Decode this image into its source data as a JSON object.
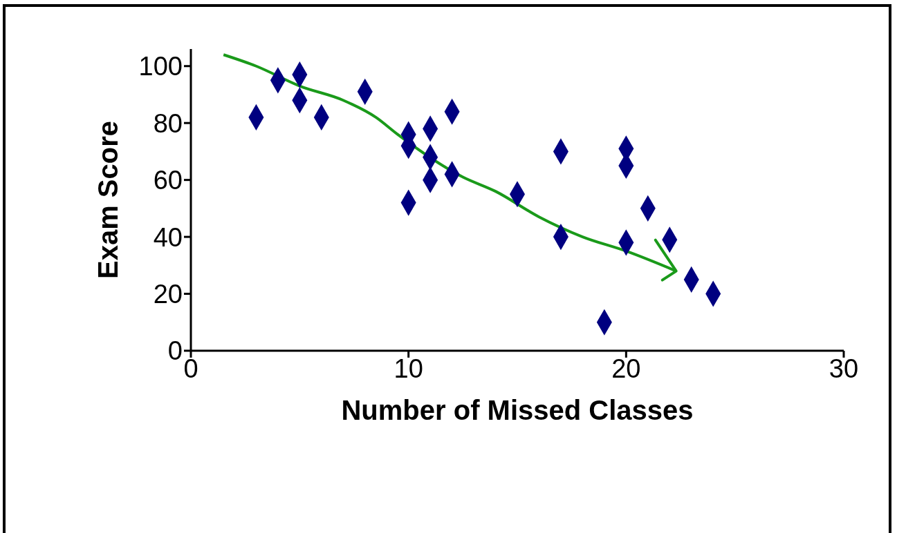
{
  "chart_data": {
    "type": "scatter",
    "xlabel": "Number of Missed Classes",
    "ylabel": "Exam Score",
    "xlim": [
      0,
      30
    ],
    "ylim": [
      0,
      106
    ],
    "xticks": [
      0,
      10,
      20,
      30
    ],
    "yticks": [
      0,
      20,
      40,
      60,
      80,
      100
    ],
    "grid": false,
    "legend": false,
    "series": [
      {
        "color": "#000080",
        "marker": "diamond",
        "x": [
          3,
          4,
          5,
          5,
          6,
          8,
          10,
          10,
          10,
          11,
          11,
          11,
          12,
          12,
          15,
          17,
          17,
          19,
          20,
          20,
          20,
          21,
          22,
          23,
          24
        ],
        "values": [
          82,
          95,
          97,
          88,
          82,
          91,
          76,
          72,
          52,
          78,
          68,
          60,
          84,
          62,
          55,
          70,
          40,
          10,
          71,
          65,
          38,
          50,
          39,
          25,
          20
        ]
      },
      {
        "type": "line",
        "color": "#1a9a1a",
        "marker": "none",
        "line_style": "solid",
        "x": [
          1.5,
          3,
          5,
          7,
          8.5,
          9.5,
          12.5,
          14,
          16,
          18,
          20,
          22.3
        ],
        "values": [
          104,
          100,
          93,
          88,
          82,
          76,
          61,
          56,
          47,
          40,
          35,
          28
        ]
      }
    ]
  }
}
